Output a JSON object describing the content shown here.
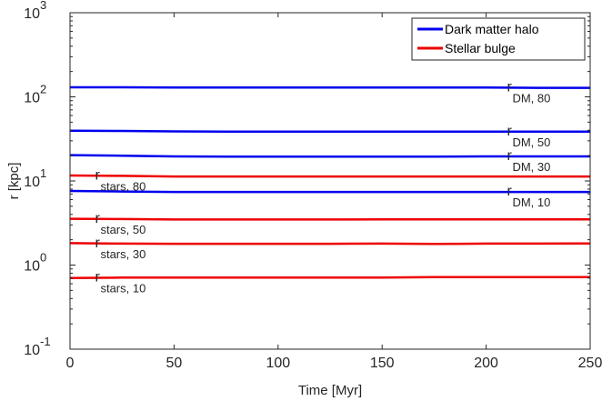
{
  "chart_data": {
    "type": "line",
    "xlabel": "Time [Myr]",
    "ylabel": "r [kpc]",
    "xlim": [
      0,
      250
    ],
    "ylim": [
      0.1,
      1000
    ],
    "yscale": "log",
    "xticks": [
      {
        "value": 0,
        "label": "0"
      },
      {
        "value": 50,
        "label": "50"
      },
      {
        "value": 100,
        "label": "100"
      },
      {
        "value": 150,
        "label": "150"
      },
      {
        "value": 200,
        "label": "200"
      },
      {
        "value": 250,
        "label": "250"
      }
    ],
    "yticks": [
      {
        "value": 0.1,
        "base": "10",
        "exp": "-1"
      },
      {
        "value": 1,
        "base": "10",
        "exp": "0"
      },
      {
        "value": 10,
        "base": "10",
        "exp": "1"
      },
      {
        "value": 100,
        "base": "10",
        "exp": "2"
      },
      {
        "value": 1000,
        "base": "10",
        "exp": "3"
      }
    ],
    "legend": {
      "position": "top-right",
      "entries": [
        {
          "label": "Dark matter halo",
          "color": "#0000ee"
        },
        {
          "label": "Stellar bulge",
          "color": "#ee0000"
        }
      ]
    },
    "x": [
      0,
      25,
      50,
      75,
      100,
      125,
      150,
      175,
      200,
      225,
      250
    ],
    "series": [
      {
        "group": "Dark matter halo",
        "color": "#0000ee",
        "values": [
          130,
          130,
          129,
          129,
          129,
          129,
          129,
          129,
          129,
          128,
          128
        ]
      },
      {
        "group": "Dark matter halo",
        "color": "#0000ee",
        "values": [
          39.5,
          39.3,
          38.8,
          38.6,
          38.6,
          38.6,
          38.6,
          38.6,
          38.5,
          38.5,
          38.5
        ]
      },
      {
        "group": "Dark matter halo",
        "color": "#0000ee",
        "values": [
          20.3,
          20.0,
          19.6,
          19.5,
          19.5,
          19.5,
          19.5,
          19.5,
          19.6,
          19.6,
          19.6
        ]
      },
      {
        "group": "Dark matter halo",
        "color": "#0000ee",
        "values": [
          7.6,
          7.5,
          7.4,
          7.4,
          7.4,
          7.4,
          7.4,
          7.4,
          7.4,
          7.4,
          7.4
        ]
      },
      {
        "group": "Stellar bulge",
        "color": "#ee0000",
        "values": [
          11.6,
          11.5,
          11.3,
          11.3,
          11.3,
          11.3,
          11.3,
          11.3,
          11.3,
          11.3,
          11.3
        ]
      },
      {
        "group": "Stellar bulge",
        "color": "#ee0000",
        "values": [
          3.55,
          3.52,
          3.48,
          3.48,
          3.48,
          3.48,
          3.49,
          3.49,
          3.5,
          3.5,
          3.5
        ]
      },
      {
        "group": "Stellar bulge",
        "color": "#ee0000",
        "values": [
          1.82,
          1.8,
          1.79,
          1.79,
          1.79,
          1.79,
          1.8,
          1.78,
          1.8,
          1.8,
          1.81
        ]
      },
      {
        "group": "Stellar bulge",
        "color": "#ee0000",
        "values": [
          0.7,
          0.71,
          0.71,
          0.71,
          0.71,
          0.71,
          0.71,
          0.72,
          0.72,
          0.72,
          0.72
        ]
      }
    ],
    "annotations": [
      {
        "main": "r",
        "sub": "DM, 80",
        "x": 210,
        "y": 128
      },
      {
        "main": "r",
        "sub": "DM, 50",
        "x": 210,
        "y": 38.5
      },
      {
        "main": "r",
        "sub": "DM, 30",
        "x": 210,
        "y": 19.6
      },
      {
        "main": "r",
        "sub": "DM, 10",
        "x": 210,
        "y": 7.4
      },
      {
        "main": "r",
        "sub": "stars, 80",
        "x": 12,
        "y": 11.4
      },
      {
        "main": "r",
        "sub": "stars, 50",
        "x": 12,
        "y": 3.5
      },
      {
        "main": "r",
        "sub": "stars, 30",
        "x": 12,
        "y": 1.8
      },
      {
        "main": "r",
        "sub": "stars, 10",
        "x": 12,
        "y": 0.71
      }
    ]
  }
}
